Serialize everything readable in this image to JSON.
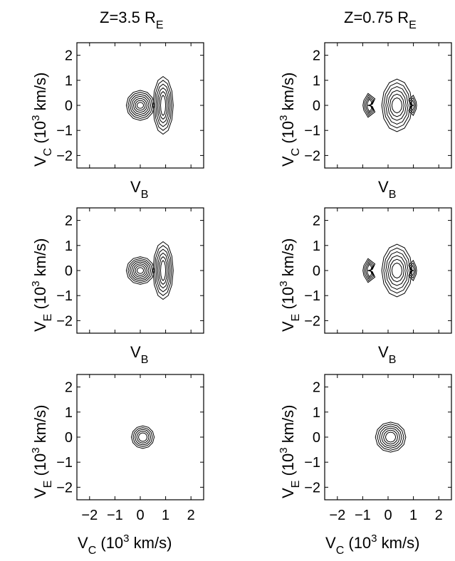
{
  "columns": [
    {
      "title_main": "Z=3.5 R",
      "title_sub": "E"
    },
    {
      "title_main": "Z=0.75 R",
      "title_sub": "E"
    }
  ],
  "axis_text": {
    "vc_main": "V",
    "vc_sub": "C",
    "ve_main": "V",
    "ve_sub": "E",
    "vb_main": "V",
    "vb_sub": "B",
    "unit_open": " (10",
    "unit_sup": "3",
    "unit_close": " km/s)"
  },
  "chart_data": [
    {
      "type": "contour",
      "panel": "row1-col1",
      "ylabel": "V_C (10^3 km/s)",
      "xlabel": "V_B",
      "xlim": [
        -2.5,
        2.5
      ],
      "ylim": [
        -2.5,
        2.5
      ],
      "xticks": [],
      "yticks": [
        -2,
        -1,
        0,
        1,
        2
      ],
      "ytick_labels": [
        "−2",
        "−1",
        "0",
        "1",
        "2"
      ],
      "features": [
        {
          "shape": "blob",
          "cx": 0.0,
          "cy": 0.0,
          "rx": [
            0.55,
            0.48,
            0.41,
            0.34,
            0.27,
            0.2,
            0.13
          ],
          "ry": [
            0.6,
            0.52,
            0.44,
            0.36,
            0.28,
            0.2,
            0.12
          ]
        },
        {
          "shape": "blob",
          "cx": 0.9,
          "cy": 0.0,
          "rx": [
            0.4,
            0.34,
            0.28,
            0.22,
            0.16,
            0.1
          ],
          "ry": [
            1.15,
            1.0,
            0.85,
            0.7,
            0.55,
            0.4
          ]
        }
      ]
    },
    {
      "type": "contour",
      "panel": "row1-col2",
      "ylabel": "V_C (10^3 km/s)",
      "xlabel": "V_B",
      "xlim": [
        -2.5,
        2.5
      ],
      "ylim": [
        -2.5,
        2.5
      ],
      "xticks": [],
      "yticks": [
        -2,
        -1,
        0,
        1,
        2
      ],
      "ytick_labels": [
        "−2",
        "−1",
        "0",
        "1",
        "2"
      ],
      "features": [
        {
          "shape": "crescent",
          "cx": -0.72,
          "cy": 0.0,
          "w": [
            0.34,
            0.27,
            0.2,
            0.13
          ],
          "h": [
            0.95,
            0.8,
            0.65,
            0.5
          ],
          "notch": 0.12
        },
        {
          "shape": "blob",
          "cx": 0.35,
          "cy": 0.0,
          "rx": [
            0.6,
            0.52,
            0.44,
            0.36,
            0.28,
            0.2
          ],
          "ry": [
            1.05,
            0.9,
            0.75,
            0.6,
            0.45,
            0.3
          ]
        },
        {
          "shape": "crescent-right",
          "cx": 0.95,
          "cy": 0.0,
          "w": [
            0.22,
            0.16,
            0.1
          ],
          "h": [
            0.8,
            0.6,
            0.4
          ],
          "notch": 0.08
        }
      ]
    },
    {
      "type": "contour",
      "panel": "row2-col1",
      "ylabel": "V_E (10^3 km/s)",
      "xlabel": "V_B",
      "xlim": [
        -2.5,
        2.5
      ],
      "ylim": [
        -2.5,
        2.5
      ],
      "xticks": [],
      "yticks": [
        -2,
        -1,
        0,
        1,
        2
      ],
      "ytick_labels": [
        "−2",
        "−1",
        "0",
        "1",
        "2"
      ],
      "features": [
        {
          "shape": "blob",
          "cx": 0.0,
          "cy": 0.0,
          "rx": [
            0.55,
            0.48,
            0.41,
            0.34,
            0.27,
            0.2,
            0.13
          ],
          "ry": [
            0.55,
            0.48,
            0.41,
            0.34,
            0.27,
            0.2,
            0.12
          ]
        },
        {
          "shape": "blob",
          "cx": 0.9,
          "cy": 0.0,
          "rx": [
            0.4,
            0.34,
            0.28,
            0.22,
            0.16,
            0.1
          ],
          "ry": [
            1.15,
            1.0,
            0.85,
            0.7,
            0.55,
            0.4
          ]
        }
      ]
    },
    {
      "type": "contour",
      "panel": "row2-col2",
      "ylabel": "V_E (10^3 km/s)",
      "xlabel": "V_B",
      "xlim": [
        -2.5,
        2.5
      ],
      "ylim": [
        -2.5,
        2.5
      ],
      "xticks": [],
      "yticks": [
        -2,
        -1,
        0,
        1,
        2
      ],
      "ytick_labels": [
        "−2",
        "−1",
        "0",
        "1",
        "2"
      ],
      "features": [
        {
          "shape": "crescent",
          "cx": -0.72,
          "cy": 0.0,
          "w": [
            0.34,
            0.27,
            0.2,
            0.13
          ],
          "h": [
            0.95,
            0.8,
            0.65,
            0.5
          ],
          "notch": 0.12
        },
        {
          "shape": "blob",
          "cx": 0.35,
          "cy": 0.0,
          "rx": [
            0.6,
            0.52,
            0.44,
            0.36,
            0.28,
            0.2
          ],
          "ry": [
            1.05,
            0.9,
            0.75,
            0.6,
            0.45,
            0.3
          ]
        },
        {
          "shape": "crescent-right",
          "cx": 0.95,
          "cy": 0.0,
          "w": [
            0.22,
            0.16,
            0.1
          ],
          "h": [
            0.8,
            0.6,
            0.4
          ],
          "notch": 0.08
        }
      ]
    },
    {
      "type": "contour",
      "panel": "row3-col1",
      "ylabel": "V_E (10^3 km/s)",
      "xlabel": "V_C (10^3 km/s)",
      "xlim": [
        -2.5,
        2.5
      ],
      "ylim": [
        -2.5,
        2.5
      ],
      "xticks": [
        -2,
        -1,
        0,
        1,
        2
      ],
      "xtick_labels": [
        "−2",
        "−1",
        "0",
        "1",
        "2"
      ],
      "yticks": [
        -2,
        -1,
        0,
        1,
        2
      ],
      "ytick_labels": [
        "−2",
        "−1",
        "0",
        "1",
        "2"
      ],
      "features": [
        {
          "shape": "blob",
          "cx": 0.1,
          "cy": 0.0,
          "rx": [
            0.45,
            0.38,
            0.31,
            0.24,
            0.17
          ],
          "ry": [
            0.45,
            0.38,
            0.31,
            0.24,
            0.17
          ]
        }
      ]
    },
    {
      "type": "contour",
      "panel": "row3-col2",
      "ylabel": "V_E (10^3 km/s)",
      "xlabel": "V_C (10^3 km/s)",
      "xlim": [
        -2.5,
        2.5
      ],
      "ylim": [
        -2.5,
        2.5
      ],
      "xticks": [
        -2,
        -1,
        0,
        1,
        2
      ],
      "xtick_labels": [
        "−2",
        "−1",
        "0",
        "1",
        "2"
      ],
      "yticks": [
        -2,
        -1,
        0,
        1,
        2
      ],
      "ytick_labels": [
        "−2",
        "−1",
        "0",
        "1",
        "2"
      ],
      "features": [
        {
          "shape": "blob",
          "cx": 0.1,
          "cy": 0.0,
          "rx": [
            0.6,
            0.52,
            0.44,
            0.36,
            0.28,
            0.2
          ],
          "ry": [
            0.6,
            0.52,
            0.44,
            0.36,
            0.28,
            0.2
          ]
        }
      ]
    }
  ]
}
